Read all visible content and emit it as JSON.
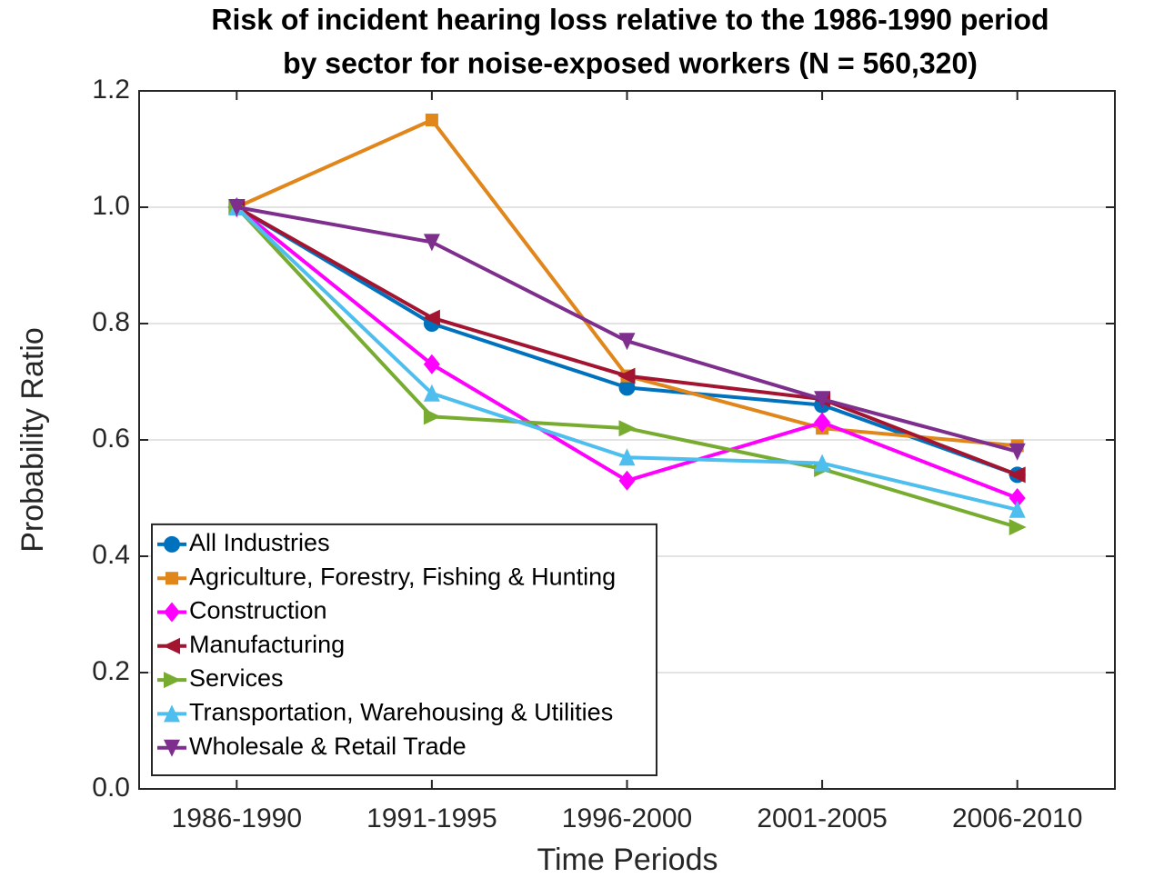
{
  "chart_data": {
    "type": "line",
    "title": [
      "Risk of incident hearing loss relative to the 1986-1990 period",
      "by sector for noise-exposed workers (N = 560,320)"
    ],
    "xlabel": "Time Periods",
    "ylabel": "Probability Ratio",
    "categories": [
      "1986-1990",
      "1991-1995",
      "1996-2000",
      "2001-2005",
      "2006-2010"
    ],
    "ylim": [
      0,
      1.2
    ],
    "yticks": [
      {
        "value": 0,
        "label": "0.0"
      },
      0.2,
      0.4,
      0.6,
      0.8,
      {
        "value": 1,
        "label": "1.0"
      },
      1.2
    ],
    "grid": true,
    "legend": "lower left",
    "series": [
      {
        "name": "All Industries",
        "color": "#0072bd",
        "marker": "circle",
        "values": [
          1.0,
          0.8,
          0.69,
          0.66,
          0.54
        ]
      },
      {
        "name": "Agriculture, Forestry, Fishing & Hunting",
        "color": "#e0861a",
        "marker": "square",
        "values": [
          1.0,
          1.15,
          0.71,
          0.62,
          0.59
        ]
      },
      {
        "name": "Construction",
        "color": "#ff00ff",
        "marker": "diamond",
        "values": [
          1.0,
          0.73,
          0.53,
          0.63,
          0.5
        ]
      },
      {
        "name": "Manufacturing",
        "color": "#a2142f",
        "marker": "triangle-left",
        "values": [
          1.0,
          0.81,
          0.71,
          0.67,
          0.54
        ]
      },
      {
        "name": "Services",
        "color": "#77ac30",
        "marker": "triangle-right",
        "values": [
          1.0,
          0.64,
          0.62,
          0.55,
          0.45
        ]
      },
      {
        "name": "Transportation, Warehousing & Utilities",
        "color": "#4dbeee",
        "marker": "triangle-up",
        "values": [
          1.0,
          0.68,
          0.57,
          0.56,
          0.48
        ]
      },
      {
        "name": "Wholesale & Retail Trade",
        "color": "#7e2f8e",
        "marker": "triangle-down",
        "values": [
          1.0,
          0.94,
          0.77,
          0.67,
          0.58
        ]
      }
    ]
  }
}
